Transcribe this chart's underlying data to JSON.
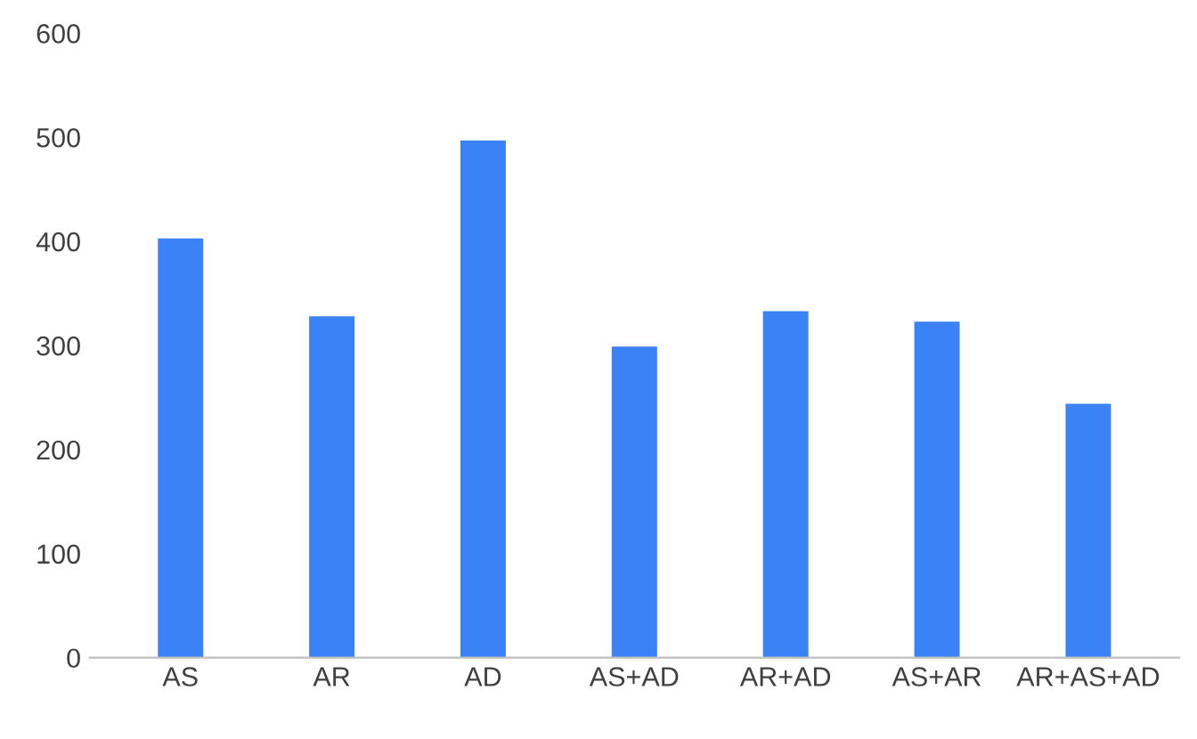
{
  "chart_data": {
    "type": "bar",
    "categories": [
      "AS",
      "AR",
      "AD",
      "AS+AD",
      "AR+AD",
      "AS+AR",
      "AR+AS+AD"
    ],
    "values": [
      403,
      328,
      497,
      299,
      333,
      323,
      244
    ],
    "color": "#3b82f6",
    "ylim": [
      0,
      600
    ],
    "yticks": [
      0,
      100,
      200,
      300,
      400,
      500,
      600
    ],
    "grid": false,
    "legend": false
  }
}
